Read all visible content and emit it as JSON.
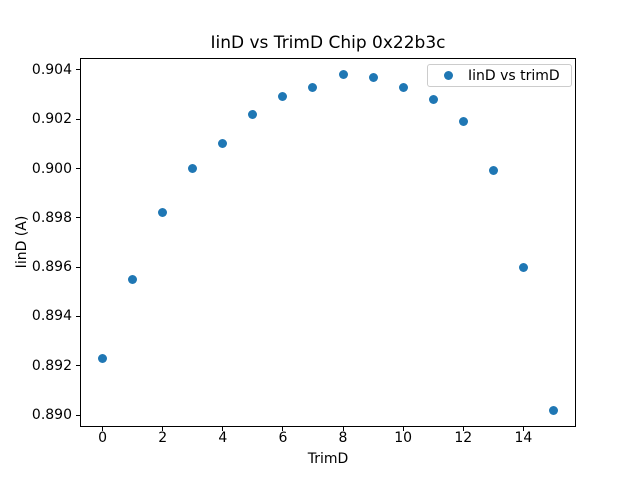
{
  "chart_data": {
    "type": "scatter",
    "title": "IinD vs TrimD Chip 0x22b3c",
    "xlabel": "TrimD",
    "ylabel": "IinD (A)",
    "legend": {
      "entries": [
        "IinD vs trimD"
      ],
      "position": "upper right"
    },
    "x": [
      0,
      1,
      2,
      3,
      4,
      5,
      6,
      7,
      8,
      9,
      10,
      11,
      12,
      13,
      14,
      15
    ],
    "y": [
      0.8923,
      0.8955,
      0.8982,
      0.9,
      0.901,
      0.9022,
      0.9029,
      0.9033,
      0.9038,
      0.9037,
      0.9033,
      0.9028,
      0.9019,
      0.8999,
      0.896,
      0.8902
    ],
    "xlim": [
      -0.75,
      15.75
    ],
    "ylim": [
      0.88952,
      0.90448
    ],
    "xtick_values": [
      0,
      2,
      4,
      6,
      8,
      10,
      12,
      14
    ],
    "xtick_labels": [
      "0",
      "2",
      "4",
      "6",
      "8",
      "10",
      "12",
      "14"
    ],
    "ytick_values": [
      0.89,
      0.892,
      0.894,
      0.896,
      0.898,
      0.9,
      0.902,
      0.904
    ],
    "ytick_labels": [
      "0.890",
      "0.892",
      "0.894",
      "0.896",
      "0.898",
      "0.900",
      "0.902",
      "0.904"
    ],
    "grid": false,
    "marker_color": "#1f77b4",
    "background_color": "#ffffff"
  }
}
